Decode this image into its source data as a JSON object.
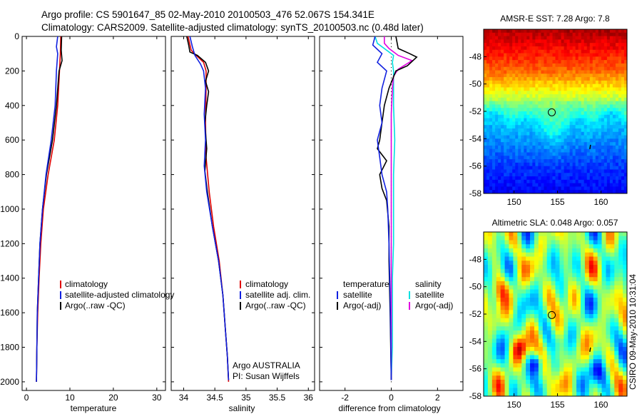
{
  "header": {
    "line1": "Argo profile: CS 5901647_85 02-May-2010 20100503_476 52.067S 154.341E",
    "line2": "Climatology: CARS2009. Satellite-adjusted climatology: synTS_20100503.nc (0.48d later)"
  },
  "side_label": "CSIRO 09-May-2010 10:31:04",
  "chart_data": [
    {
      "id": "temperature",
      "type": "line",
      "xlabel": "temperature",
      "ylabel": "",
      "xlim": [
        -1,
        32
      ],
      "ylim": [
        2050,
        0
      ],
      "xticks": [
        0,
        10,
        20,
        30
      ],
      "yticks": [
        0,
        200,
        400,
        600,
        800,
        1000,
        1200,
        1400,
        1600,
        1800,
        2000
      ],
      "legend": [
        {
          "label": "climatology",
          "color": "#e00000"
        },
        {
          "label": "satellite-adjusted climatology",
          "color": "#1020e0"
        },
        {
          "label": "Argo(..raw -QC)",
          "color": "#000000"
        }
      ],
      "series": [
        {
          "color": "#e00000",
          "points": [
            [
              7.9,
              0
            ],
            [
              7.8,
              100
            ],
            [
              7.6,
              200
            ],
            [
              7.2,
              400
            ],
            [
              6.4,
              600
            ],
            [
              5.0,
              800
            ],
            [
              3.9,
              1000
            ],
            [
              3.3,
              1200
            ],
            [
              2.9,
              1400
            ],
            [
              2.6,
              1600
            ],
            [
              2.4,
              1800
            ],
            [
              2.3,
              2000
            ]
          ]
        },
        {
          "color": "#000000",
          "points": [
            [
              8.1,
              0
            ],
            [
              8.0,
              80
            ],
            [
              8.2,
              140
            ],
            [
              7.5,
              200
            ],
            [
              6.9,
              400
            ],
            [
              6.0,
              600
            ],
            [
              4.6,
              800
            ],
            [
              3.7,
              1000
            ],
            [
              3.1,
              1200
            ],
            [
              2.8,
              1400
            ],
            [
              2.5,
              1600
            ],
            [
              2.4,
              1800
            ],
            [
              2.3,
              2000
            ]
          ]
        },
        {
          "color": "#1020e0",
          "points": [
            [
              7.2,
              0
            ],
            [
              6.9,
              60
            ],
            [
              7.2,
              100
            ],
            [
              6.9,
              200
            ],
            [
              6.6,
              400
            ],
            [
              5.7,
              600
            ],
            [
              4.5,
              800
            ],
            [
              3.7,
              1000
            ],
            [
              3.1,
              1200
            ],
            [
              2.8,
              1400
            ],
            [
              2.5,
              1600
            ],
            [
              2.4,
              1800
            ],
            [
              2.3,
              2000
            ]
          ]
        }
      ]
    },
    {
      "id": "salinity",
      "type": "line",
      "xlabel": "salinity",
      "ylabel": "",
      "xlim": [
        33.8,
        36.1
      ],
      "ylim": [
        2050,
        0
      ],
      "xticks": [
        34,
        34.5,
        35,
        35.5,
        36
      ],
      "xticklabels": [
        "34",
        "34.5",
        "35",
        "35.5",
        "36"
      ],
      "legend": [
        {
          "label": "climatology",
          "color": "#e00000"
        },
        {
          "label": "satellite adj. clim.",
          "color": "#1020e0"
        },
        {
          "label": "Argo(..raw -QC)",
          "color": "#000000"
        }
      ],
      "annotation_lines": [
        "Argo AUSTRALIA",
        "PI: Susan Wijffels"
      ],
      "series": [
        {
          "color": "#e00000",
          "points": [
            [
              34.07,
              0
            ],
            [
              34.12,
              80
            ],
            [
              34.2,
              110
            ],
            [
              34.32,
              150
            ],
            [
              34.36,
              200
            ],
            [
              34.36,
              300
            ],
            [
              34.35,
              500
            ],
            [
              34.36,
              700
            ],
            [
              34.41,
              900
            ],
            [
              34.48,
              1100
            ],
            [
              34.57,
              1300
            ],
            [
              34.63,
              1500
            ],
            [
              34.67,
              1700
            ],
            [
              34.7,
              1850
            ],
            [
              34.72,
              2000
            ]
          ]
        },
        {
          "color": "#000000",
          "points": [
            [
              34.05,
              0
            ],
            [
              34.08,
              50
            ],
            [
              34.1,
              90
            ],
            [
              34.22,
              110
            ],
            [
              34.35,
              150
            ],
            [
              34.4,
              200
            ],
            [
              34.35,
              260
            ],
            [
              34.4,
              320
            ],
            [
              34.37,
              400
            ],
            [
              34.34,
              500
            ],
            [
              34.37,
              650
            ],
            [
              34.34,
              780
            ],
            [
              34.38,
              900
            ],
            [
              34.46,
              1100
            ],
            [
              34.56,
              1300
            ],
            [
              34.63,
              1500
            ],
            [
              34.67,
              1700
            ],
            [
              34.7,
              1850
            ],
            [
              34.72,
              1990
            ]
          ]
        },
        {
          "color": "#1020e0",
          "points": [
            [
              34.1,
              0
            ],
            [
              34.14,
              60
            ],
            [
              34.18,
              110
            ],
            [
              34.27,
              160
            ],
            [
              34.32,
              200
            ],
            [
              34.35,
              300
            ],
            [
              34.33,
              450
            ],
            [
              34.35,
              600
            ],
            [
              34.33,
              750
            ],
            [
              34.37,
              900
            ],
            [
              34.46,
              1100
            ],
            [
              34.56,
              1300
            ],
            [
              34.63,
              1500
            ],
            [
              34.67,
              1700
            ],
            [
              34.7,
              1850
            ],
            [
              34.72,
              1990
            ]
          ]
        }
      ]
    },
    {
      "id": "difference",
      "type": "line",
      "xlabel": "difference from climatology",
      "ylabel": "",
      "xlim": [
        -3.1,
        3.1
      ],
      "ylim": [
        2050,
        0
      ],
      "xticks": [
        -2,
        0,
        2
      ],
      "legend_left": {
        "title": "temperature",
        "items": [
          {
            "label": "satellite",
            "color": "#1020e0"
          },
          {
            "label": "Argo(-adj)",
            "color": "#000000"
          }
        ]
      },
      "legend_right": {
        "title": "salinity",
        "items": [
          {
            "label": "satellite",
            "color": "#00e0e0"
          },
          {
            "label": "Argo(-adj)",
            "color": "#e000e0"
          }
        ]
      },
      "series": [
        {
          "color": "#00e0e0",
          "points": [
            [
              -0.7,
              0
            ],
            [
              -0.6,
              40
            ],
            [
              -0.2,
              80
            ],
            [
              0.1,
              110
            ],
            [
              0.05,
              150
            ],
            [
              0.1,
              200
            ],
            [
              0.1,
              400
            ],
            [
              0.15,
              600
            ],
            [
              0.1,
              800
            ],
            [
              0.1,
              1000
            ],
            [
              0.1,
              1200
            ],
            [
              0.05,
              1400
            ],
            [
              0.05,
              1600
            ],
            [
              0.05,
              1800
            ],
            [
              0.0,
              1990
            ]
          ]
        },
        {
          "color": "#e000e0",
          "points": [
            [
              -0.3,
              0
            ],
            [
              -0.3,
              40
            ],
            [
              -0.1,
              70
            ],
            [
              0.3,
              110
            ],
            [
              0.9,
              140
            ],
            [
              0.3,
              190
            ],
            [
              0.1,
              230
            ],
            [
              0.05,
              300
            ],
            [
              0.0,
              450
            ],
            [
              0.0,
              800
            ],
            [
              0.0,
              1200
            ],
            [
              0.0,
              1600
            ],
            [
              0.0,
              1990
            ]
          ]
        },
        {
          "color": "#000000",
          "points": [
            [
              0.2,
              0
            ],
            [
              0.3,
              70
            ],
            [
              0.8,
              100
            ],
            [
              1.1,
              120
            ],
            [
              0.7,
              170
            ],
            [
              0.2,
              200
            ],
            [
              -0.1,
              300
            ],
            [
              -0.3,
              400
            ],
            [
              -0.4,
              500
            ],
            [
              -0.5,
              600
            ],
            [
              -0.6,
              650
            ],
            [
              -0.2,
              720
            ],
            [
              -0.5,
              800
            ],
            [
              -0.4,
              880
            ],
            [
              -0.2,
              950
            ],
            [
              -0.1,
              1100
            ],
            [
              -0.1,
              1300
            ],
            [
              -0.05,
              1600
            ],
            [
              0.0,
              1990
            ]
          ]
        },
        {
          "color": "#1020e0",
          "points": [
            [
              -0.7,
              0
            ],
            [
              -0.8,
              50
            ],
            [
              -0.4,
              100
            ],
            [
              -0.6,
              150
            ],
            [
              -0.2,
              200
            ],
            [
              -0.4,
              300
            ],
            [
              -0.5,
              400
            ],
            [
              -0.4,
              500
            ],
            [
              -0.6,
              600
            ],
            [
              -0.5,
              700
            ],
            [
              -0.4,
              800
            ],
            [
              -0.2,
              900
            ],
            [
              -0.15,
              1000
            ],
            [
              -0.1,
              1200
            ],
            [
              -0.05,
              1500
            ],
            [
              0.0,
              1990
            ]
          ]
        }
      ]
    },
    {
      "id": "amsre-sst",
      "type": "heatmap",
      "title": "AMSR-E SST: 7.28 Argo: 7.8",
      "xlim": [
        146.5,
        163
      ],
      "ylim": [
        -58,
        -46
      ],
      "xticks": [
        150,
        155,
        160
      ],
      "yticks": [
        -48,
        -50,
        -52,
        -54,
        -56,
        -58
      ],
      "marker": {
        "lon": 154.34,
        "lat": -52.07
      }
    },
    {
      "id": "altimetric-sla",
      "type": "heatmap",
      "title": "Altimetric SLA: 0.048 Argo: 0.057",
      "xlim": [
        146.5,
        163
      ],
      "ylim": [
        -58,
        -46
      ],
      "xticks": [
        150,
        155,
        160
      ],
      "yticks": [
        -48,
        -50,
        -52,
        -54,
        -56,
        -58
      ],
      "marker": {
        "lon": 154.34,
        "lat": -52.07
      }
    }
  ]
}
